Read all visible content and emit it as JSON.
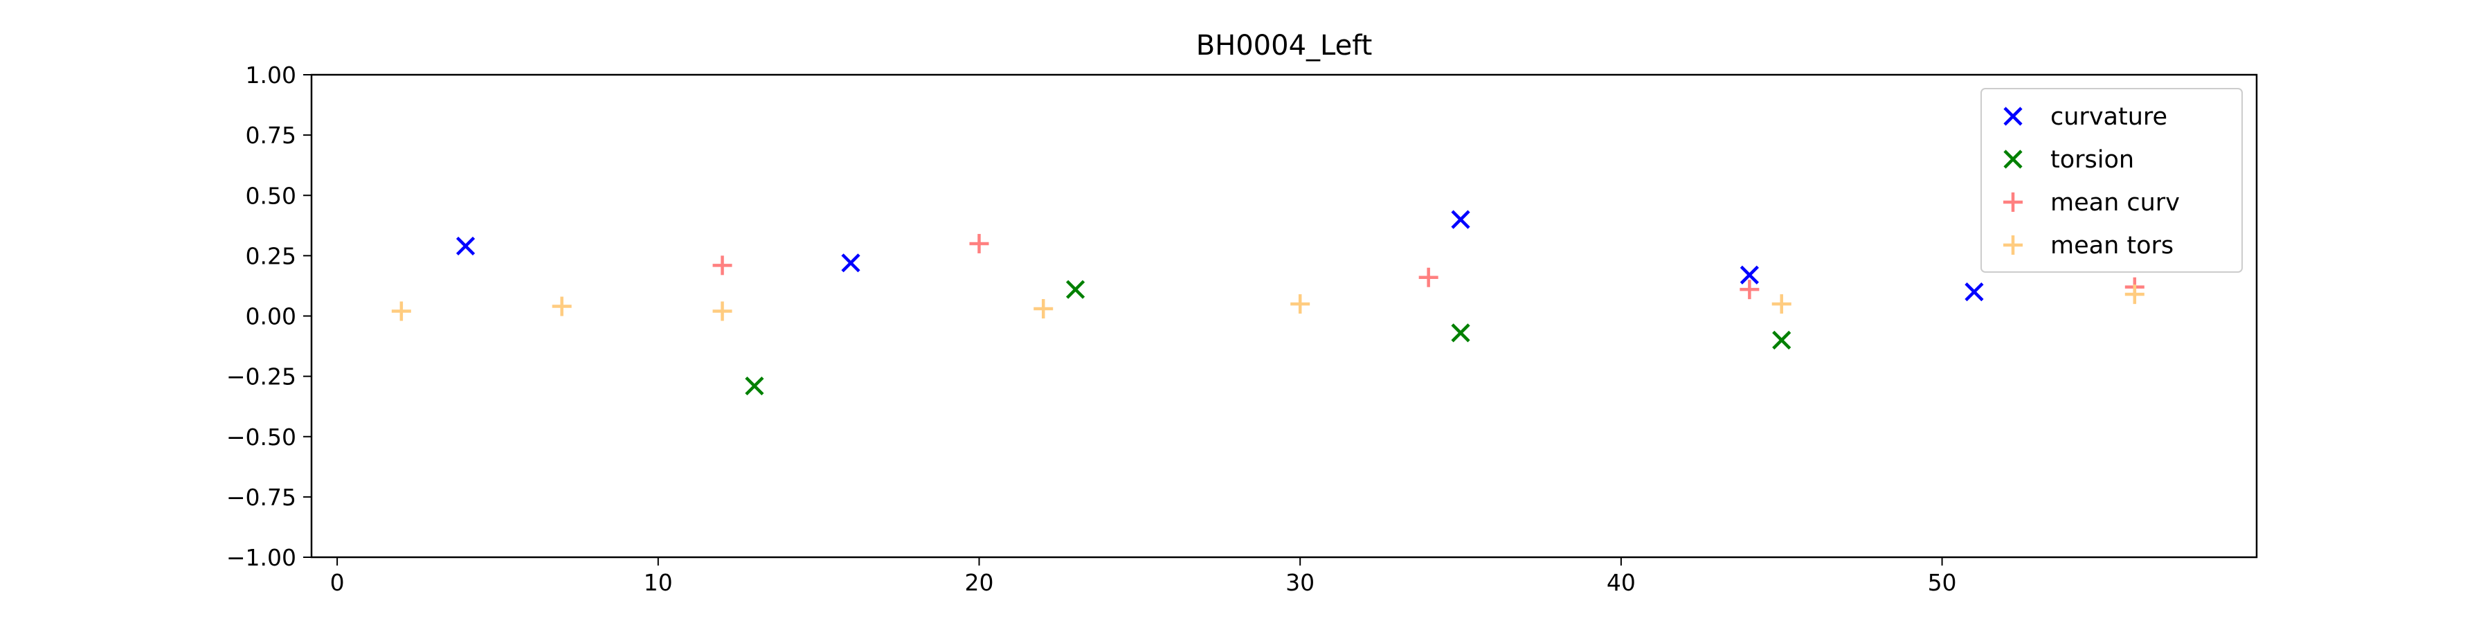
{
  "chart_data": {
    "type": "scatter",
    "title": "BH0004_Left",
    "xlabel": "",
    "ylabel": "",
    "xlim": [
      -0.8,
      59.8
    ],
    "ylim": [
      -1.0,
      1.0
    ],
    "x_ticks": [
      0,
      10,
      20,
      30,
      40,
      50
    ],
    "y_ticks": [
      1.0,
      0.75,
      0.5,
      0.25,
      0.0,
      -0.25,
      -0.5,
      -0.75,
      -1.0
    ],
    "x_tick_labels": [
      "0",
      "10",
      "20",
      "30",
      "40",
      "50"
    ],
    "y_tick_labels": [
      "1.00",
      "0.75",
      "0.50",
      "0.25",
      "0.00",
      "−0.25",
      "−0.50",
      "−0.75",
      "−1.00"
    ],
    "grid": false,
    "legend_position": "top-right",
    "series": [
      {
        "name": "curvature",
        "marker": "x",
        "color": "#0000ff",
        "points": [
          [
            4,
            0.29
          ],
          [
            16,
            0.22
          ],
          [
            35,
            0.4
          ],
          [
            44,
            0.17
          ],
          [
            51,
            0.1
          ]
        ]
      },
      {
        "name": "torsion",
        "marker": "x",
        "color": "#008000",
        "points": [
          [
            13,
            -0.29
          ],
          [
            23,
            0.11
          ],
          [
            35,
            -0.07
          ],
          [
            45,
            -0.1
          ]
        ]
      },
      {
        "name": "mean curv",
        "marker": "+",
        "color": "#ff8080",
        "points": [
          [
            12,
            0.21
          ],
          [
            20,
            0.3
          ],
          [
            34,
            0.16
          ],
          [
            44,
            0.11
          ],
          [
            56,
            0.12
          ]
        ]
      },
      {
        "name": "mean tors",
        "marker": "+",
        "color": "#ffcc80",
        "points": [
          [
            2,
            0.02
          ],
          [
            7,
            0.04
          ],
          [
            12,
            0.02
          ],
          [
            22,
            0.03
          ],
          [
            30,
            0.05
          ],
          [
            45,
            0.05
          ],
          [
            56,
            0.09
          ]
        ]
      }
    ]
  }
}
